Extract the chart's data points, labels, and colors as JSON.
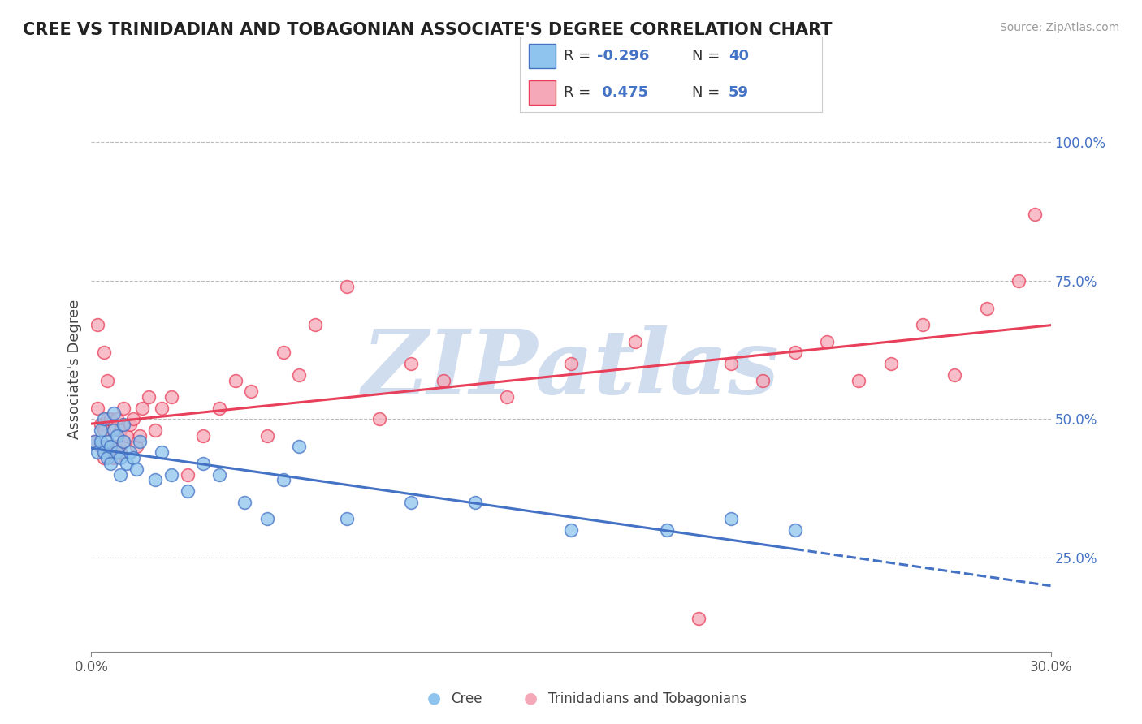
{
  "title": "CREE VS TRINIDADIAN AND TOBAGONIAN ASSOCIATE'S DEGREE CORRELATION CHART",
  "source": "Source: ZipAtlas.com",
  "ylabel": "Associate's Degree",
  "yticks": [
    0.25,
    0.5,
    0.75,
    1.0
  ],
  "ytick_labels": [
    "25.0%",
    "50.0%",
    "75.0%",
    "100.0%"
  ],
  "xtick_labels": [
    "0.0%",
    "30.0%"
  ],
  "xlim": [
    0.0,
    0.3
  ],
  "ylim": [
    0.08,
    1.1
  ],
  "cree_R": -0.296,
  "cree_N": 40,
  "tt_R": 0.475,
  "tt_N": 59,
  "cree_color": "#8EC4ED",
  "tt_color": "#F5A8B8",
  "cree_line_color": "#4472C4",
  "tt_line_color": "#E8405A",
  "watermark": "ZIPatlas",
  "watermark_color": "#D0DDEF",
  "background_color": "#FFFFFF",
  "legend_color": "#4472C4",
  "cree_x": [
    0.001,
    0.002,
    0.003,
    0.003,
    0.004,
    0.004,
    0.005,
    0.005,
    0.006,
    0.006,
    0.007,
    0.007,
    0.008,
    0.008,
    0.009,
    0.009,
    0.01,
    0.01,
    0.011,
    0.012,
    0.013,
    0.014,
    0.015,
    0.02,
    0.022,
    0.025,
    0.03,
    0.035,
    0.04,
    0.048,
    0.055,
    0.06,
    0.065,
    0.08,
    0.1,
    0.12,
    0.15,
    0.18,
    0.2,
    0.22
  ],
  "cree_y": [
    0.46,
    0.44,
    0.46,
    0.48,
    0.44,
    0.5,
    0.43,
    0.46,
    0.42,
    0.45,
    0.48,
    0.51,
    0.44,
    0.47,
    0.4,
    0.43,
    0.46,
    0.49,
    0.42,
    0.44,
    0.43,
    0.41,
    0.46,
    0.39,
    0.44,
    0.4,
    0.37,
    0.42,
    0.4,
    0.35,
    0.32,
    0.39,
    0.45,
    0.32,
    0.35,
    0.35,
    0.3,
    0.3,
    0.32,
    0.3
  ],
  "tt_x": [
    0.001,
    0.002,
    0.002,
    0.003,
    0.003,
    0.004,
    0.004,
    0.004,
    0.005,
    0.005,
    0.005,
    0.006,
    0.006,
    0.007,
    0.007,
    0.008,
    0.008,
    0.009,
    0.009,
    0.01,
    0.01,
    0.011,
    0.012,
    0.013,
    0.014,
    0.015,
    0.016,
    0.018,
    0.02,
    0.022,
    0.025,
    0.03,
    0.035,
    0.04,
    0.045,
    0.05,
    0.055,
    0.06,
    0.065,
    0.07,
    0.08,
    0.09,
    0.1,
    0.11,
    0.13,
    0.15,
    0.17,
    0.19,
    0.2,
    0.21,
    0.22,
    0.23,
    0.24,
    0.25,
    0.26,
    0.27,
    0.28,
    0.29,
    0.295
  ],
  "tt_y": [
    0.46,
    0.67,
    0.52,
    0.45,
    0.49,
    0.43,
    0.48,
    0.62,
    0.45,
    0.5,
    0.57,
    0.44,
    0.5,
    0.43,
    0.48,
    0.45,
    0.5,
    0.44,
    0.48,
    0.46,
    0.52,
    0.47,
    0.49,
    0.5,
    0.45,
    0.47,
    0.52,
    0.54,
    0.48,
    0.52,
    0.54,
    0.4,
    0.47,
    0.52,
    0.57,
    0.55,
    0.47,
    0.62,
    0.58,
    0.67,
    0.74,
    0.5,
    0.6,
    0.57,
    0.54,
    0.6,
    0.64,
    0.14,
    0.6,
    0.57,
    0.62,
    0.64,
    0.57,
    0.6,
    0.67,
    0.58,
    0.7,
    0.75,
    0.87
  ]
}
